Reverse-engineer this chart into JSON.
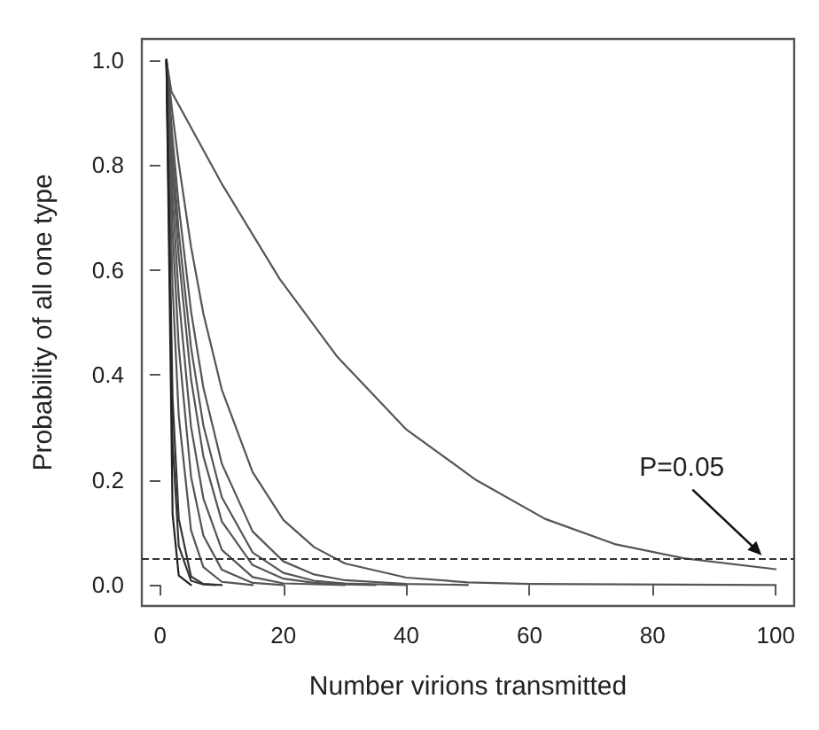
{
  "chart_data": {
    "type": "line",
    "xlabel": "Number virions transmitted",
    "ylabel": "Probability of all one type",
    "xlim": [
      -3,
      103
    ],
    "ylim": [
      -0.04,
      1.04
    ],
    "xticks": [
      0,
      20,
      40,
      60,
      80,
      100
    ],
    "yticks": [
      {
        "value": 0,
        "label": "0.0"
      },
      {
        "value": 0.2,
        "label": "0.2"
      },
      {
        "value": 0.4,
        "label": "0.4"
      },
      {
        "value": 0.6,
        "label": "0.6"
      },
      {
        "value": 0.8,
        "label": "0.8"
      },
      {
        "value": 1,
        "label": "1.0"
      }
    ],
    "grid": false,
    "marker": "none",
    "line_style": "solid",
    "ref_lines": [
      {
        "axis": "y",
        "value": 0.05,
        "label": null,
        "line_style": "dashed",
        "color": "#333333"
      }
    ],
    "annotations": [
      {
        "text": "P=0.05",
        "x": 98,
        "y": 0.05
      }
    ],
    "series": [
      {
        "color": "#555555",
        "x": [
          1,
          1.8,
          10,
          19.4,
          28.8,
          40,
          51.3,
          62.5,
          73.8,
          85,
          100
        ],
        "values": [
          1,
          0.94,
          0.764,
          0.583,
          0.434,
          0.296,
          0.2,
          0.126,
          0.078,
          0.051,
          0.03
        ]
      },
      {
        "color": "#555555",
        "x": [
          1,
          2,
          3,
          5,
          7,
          10,
          15,
          20,
          25,
          30,
          40,
          50,
          60,
          100
        ],
        "values": [
          1,
          0.896,
          0.803,
          0.644,
          0.517,
          0.372,
          0.215,
          0.124,
          0.072,
          0.041,
          0.014,
          0.005,
          0.002,
          0
        ]
      },
      {
        "color": "#555555",
        "x": [
          1,
          2,
          3,
          5,
          7,
          10,
          15,
          20,
          25,
          30,
          40,
          50
        ],
        "values": [
          1,
          0.85,
          0.722,
          0.521,
          0.376,
          0.231,
          0.102,
          0.045,
          0.02,
          0.009,
          0.002,
          0
        ]
      },
      {
        "color": "#555555",
        "x": [
          1,
          2,
          3,
          5,
          7,
          10,
          15,
          20,
          25,
          30,
          40
        ],
        "values": [
          1,
          0.82,
          0.672,
          0.452,
          0.304,
          0.167,
          0.062,
          0.023,
          0.008,
          0.003,
          0
        ]
      },
      {
        "color": "#555555",
        "x": [
          1,
          2,
          3,
          5,
          7,
          10,
          15,
          20,
          25,
          30,
          35
        ],
        "values": [
          1,
          0.791,
          0.626,
          0.392,
          0.245,
          0.121,
          0.038,
          0.012,
          0.004,
          0.001,
          0
        ]
      },
      {
        "color": "#555555",
        "x": [
          1,
          2,
          3,
          5,
          7,
          10,
          15,
          20,
          30
        ],
        "values": [
          1,
          0.741,
          0.549,
          0.301,
          0.165,
          0.067,
          0.015,
          0.003,
          0
        ]
      },
      {
        "color": "#555555",
        "x": [
          1,
          2,
          3,
          5,
          7,
          10,
          15,
          20
        ],
        "values": [
          1,
          0.674,
          0.454,
          0.206,
          0.094,
          0.029,
          0.004,
          0
        ]
      },
      {
        "color": "#555555",
        "x": [
          1,
          2,
          3,
          5,
          7,
          10,
          15
        ],
        "values": [
          1,
          0.568,
          0.322,
          0.104,
          0.034,
          0.006,
          0
        ]
      },
      {
        "color": "#333333",
        "x": [
          1,
          2,
          3,
          5,
          7,
          10
        ],
        "values": [
          1,
          0.355,
          0.126,
          0.016,
          0.002,
          0
        ]
      },
      {
        "color": "#333333",
        "x": [
          1,
          2,
          3,
          5,
          7,
          9
        ],
        "values": [
          1,
          0.271,
          0.074,
          0.008,
          0.001,
          0
        ]
      },
      {
        "color": "#222222",
        "x": [
          1,
          2,
          3,
          5
        ],
        "values": [
          1,
          0.135,
          0.018,
          0
        ]
      }
    ]
  }
}
